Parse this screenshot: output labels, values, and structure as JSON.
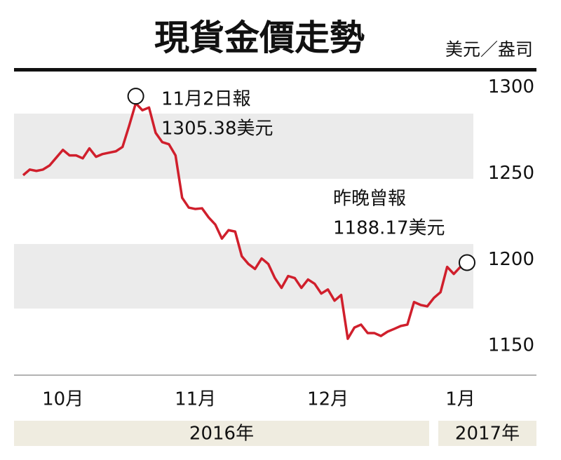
{
  "chart_data": {
    "type": "line",
    "title": "現貨金價走勢",
    "unit": "美元／盎司",
    "categories": [
      null,
      null,
      null,
      null,
      null,
      null,
      "10月",
      null,
      null,
      null,
      null,
      null,
      null,
      null,
      null,
      null,
      null,
      null,
      null,
      null,
      null,
      null,
      null,
      null,
      null,
      null,
      "11月",
      null,
      null,
      null,
      null,
      null,
      null,
      null,
      null,
      null,
      null,
      null,
      null,
      null,
      null,
      null,
      null,
      null,
      null,
      null,
      "12月",
      null,
      null,
      null,
      null,
      null,
      null,
      null,
      null,
      null,
      null,
      null,
      null,
      null,
      null,
      null,
      null,
      null,
      null,
      null,
      "1月",
      null
    ],
    "values": [
      1249.0,
      1252.3,
      1251.5,
      1252.3,
      1254.7,
      1259.2,
      1263.7,
      1260.5,
      1260.5,
      1258.8,
      1264.6,
      1259.7,
      1261.3,
      1262.1,
      1262.9,
      1265.4,
      1277.7,
      1290.8,
      1286.7,
      1288.3,
      1273.6,
      1268.2,
      1267.0,
      1260.5,
      1235.9,
      1230.2,
      1229.4,
      1229.8,
      1224.5,
      1220.4,
      1212.2,
      1217.1,
      1216.3,
      1202.0,
      1197.5,
      1194.6,
      1200.7,
      1197.5,
      1189.3,
      1183.6,
      1190.5,
      1189.3,
      1183.6,
      1188.5,
      1186.0,
      1180.3,
      1182.7,
      1176.2,
      1179.5,
      1154.1,
      1160.6,
      1162.3,
      1157.4,
      1157.4,
      1155.7,
      1158.2,
      1159.8,
      1161.5,
      1162.3,
      1175.4,
      1173.7,
      1172.9,
      1177.8,
      1181.1,
      1195.8,
      1191.7,
      1195.8,
      1198.3
    ],
    "color": "#d01f2c",
    "ylim": [
      1135,
      1310
    ],
    "yticks": [
      1150,
      1200,
      1250,
      1300
    ],
    "annotations": [
      [
        "11月2日報",
        "1305.38美元"
      ],
      [
        "昨晚曾報",
        "1188.17美元"
      ]
    ],
    "year_labels": [
      "2016年",
      "2017年"
    ]
  }
}
